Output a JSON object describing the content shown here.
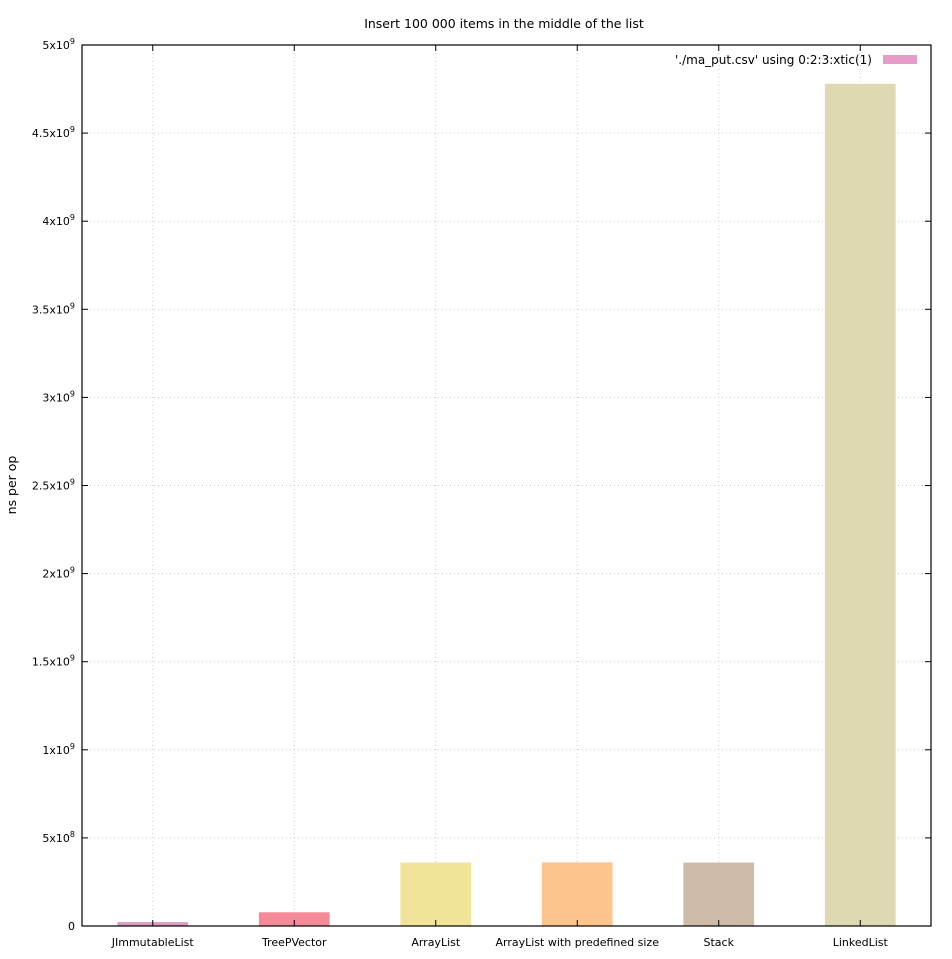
{
  "chart_data": {
    "type": "bar",
    "title": "Insert 100 000 items in the middle of the list",
    "xlabel": "",
    "ylabel": "ns per op",
    "ylim": [
      0,
      5000000000
    ],
    "grid": true,
    "legend": {
      "placement": "top-right",
      "entries": [
        "'./ma_put.csv' using 0:2:3:xtic(1)"
      ]
    },
    "yticks": [
      {
        "value": 0,
        "base": "0",
        "exp": ""
      },
      {
        "value": 500000000,
        "base": "5x10",
        "exp": "8"
      },
      {
        "value": 1000000000,
        "base": "1x10",
        "exp": "9"
      },
      {
        "value": 1500000000,
        "base": "1.5x10",
        "exp": "9"
      },
      {
        "value": 2000000000,
        "base": "2x10",
        "exp": "9"
      },
      {
        "value": 2500000000,
        "base": "2.5x10",
        "exp": "9"
      },
      {
        "value": 3000000000,
        "base": "3x10",
        "exp": "9"
      },
      {
        "value": 3500000000,
        "base": "3.5x10",
        "exp": "9"
      },
      {
        "value": 4000000000,
        "base": "4x10",
        "exp": "9"
      },
      {
        "value": 4500000000,
        "base": "4.5x10",
        "exp": "9"
      },
      {
        "value": 5000000000,
        "base": "5x10",
        "exp": "9"
      }
    ],
    "categories": [
      "JImmutableList",
      "TreePVector",
      "ArrayList",
      "ArrayList with predefined size",
      "Stack",
      "LinkedList"
    ],
    "values": [
      22000000,
      78000000,
      360000000,
      361000000,
      360000000,
      4780000000
    ],
    "colors": [
      "#d99ac4",
      "#f58a98",
      "#f1e398",
      "#fdc48e",
      "#cdbba7",
      "#dfd9b3"
    ],
    "legend_color": "#e79bc7"
  }
}
